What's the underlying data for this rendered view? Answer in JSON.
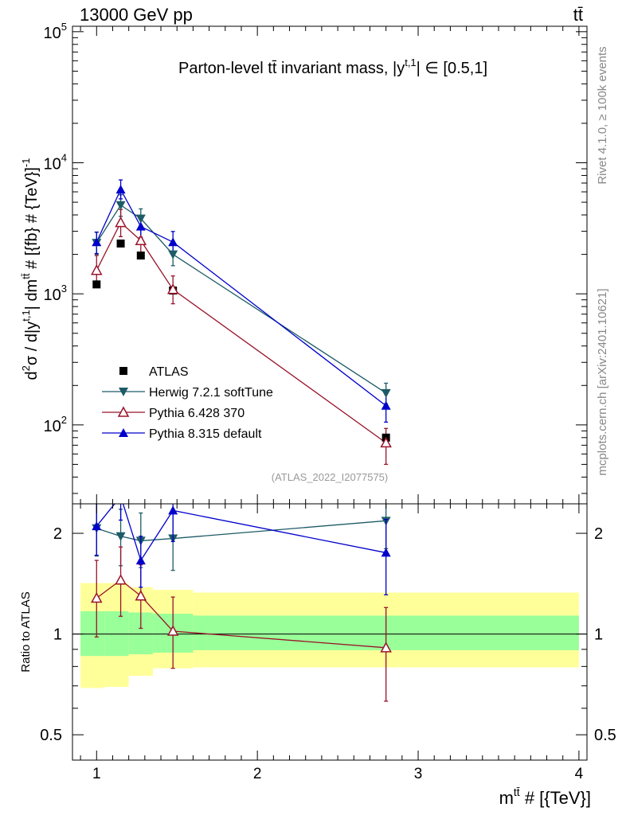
{
  "header": {
    "energy_label": "13000 GeV pp",
    "process_label": "tt̄"
  },
  "side_labels": {
    "rivet": "Rivet 4.1.0, ≥ 100k events",
    "source": "mcplots.cern.ch [arXiv:2401.10621]"
  },
  "watermark": "(ATLAS_2022_I2077575)",
  "chart_data": [
    {
      "type": "line",
      "title": "Parton-level tt̄ invariant mass, |y^{t,1}| ∈ [0.5,1]",
      "title_parts": {
        "pre": "Parton-level ",
        "ttbar": "tt̄",
        "mid": " invariant mass, |y",
        "sup": "t,1",
        "post": "| ∈ [0.5,1]"
      },
      "ylabel": "d²σ / d|y^{t,1}| dm^{tt̄} # [{fb} # {TeV}⁻¹]",
      "ylabel_parts": {
        "a": "d",
        "sup1": "2",
        "b": "σ / d|y",
        "sup2": "t,1",
        "c": "| dm",
        "sup3": "tt̄",
        "d": " # [{fb} # {TeV}]",
        "sup4": "-1"
      },
      "yscale": "log",
      "ylim": [
        25,
        110000
      ],
      "xlim": [
        0.85,
        4.05
      ],
      "y_ticks": [
        {
          "value": 100,
          "base": "10",
          "exp": "2"
        },
        {
          "value": 1000,
          "base": "10",
          "exp": "3"
        },
        {
          "value": 10000,
          "base": "10",
          "exp": "4"
        },
        {
          "value": 100000,
          "base": "10",
          "exp": "5"
        }
      ],
      "legend_position": "lower-left",
      "series": [
        {
          "name": "ATLAS",
          "marker": "square",
          "color": "#000000",
          "x": [
            1.0,
            1.15,
            1.275,
            1.475,
            2.8
          ],
          "y": [
            1180,
            2420,
            1960,
            1060,
            80
          ]
        },
        {
          "name": "Herwig 7.2.1 softTune",
          "marker": "triangle-down",
          "color": "#1d5b66",
          "x": [
            1.0,
            1.15,
            1.275,
            1.475,
            2.8
          ],
          "y": [
            2450,
            4750,
            3750,
            2000,
            175
          ],
          "yerr_low": [
            2000,
            3900,
            3100,
            1640,
            145
          ],
          "yerr_high": [
            2950,
            5700,
            4450,
            2380,
            208
          ]
        },
        {
          "name": "Pythia 6.428 370",
          "marker": "triangle-open",
          "color": "#99132a",
          "x": [
            1.0,
            1.15,
            1.275,
            1.475,
            2.8
          ],
          "y": [
            1510,
            3500,
            2550,
            1080,
            73
          ],
          "yerr_low": [
            1150,
            2730,
            2030,
            840,
            50
          ],
          "yerr_high": [
            1960,
            4400,
            3150,
            1370,
            94
          ]
        },
        {
          "name": "Pythia 8.315 default",
          "marker": "triangle-up",
          "color": "#0000cc",
          "x": [
            1.0,
            1.15,
            1.275,
            1.475,
            2.8
          ],
          "y": [
            2480,
            6250,
            3260,
            2480,
            140
          ],
          "yerr_low": [
            2030,
            5300,
            2700,
            2000,
            105
          ],
          "yerr_high": [
            2960,
            7400,
            3850,
            2990,
            176
          ]
        }
      ]
    },
    {
      "type": "line",
      "title": "",
      "ylabel": "Ratio to ATLAS",
      "xlabel_parts": {
        "a": "m",
        "sup": "tt̄",
        "b": " # [{TeV}]"
      },
      "yscale": "log",
      "ylim": [
        0.42,
        2.45
      ],
      "xlim": [
        0.85,
        4.05
      ],
      "y_ticks": [
        {
          "value": 0.5,
          "label": "0.5"
        },
        {
          "value": 1,
          "label": "1"
        },
        {
          "value": 2,
          "label": "2"
        }
      ],
      "x_ticks": [
        {
          "value": 1,
          "label": "1"
        },
        {
          "value": 2,
          "label": "2"
        },
        {
          "value": 3,
          "label": "3"
        },
        {
          "value": 4,
          "label": "4"
        }
      ],
      "bands": {
        "bin_edges": [
          0.9,
          1.05,
          1.2,
          1.35,
          1.6,
          4.0
        ],
        "inner_color": "#99ff99",
        "outer_color": "#ffff99",
        "inner_low": [
          0.86,
          0.86,
          0.87,
          0.88,
          0.895
        ],
        "inner_high": [
          1.17,
          1.17,
          1.16,
          1.15,
          1.135
        ],
        "outer_low": [
          0.69,
          0.695,
          0.75,
          0.79,
          0.795
        ],
        "outer_high": [
          1.42,
          1.42,
          1.38,
          1.355,
          1.33
        ]
      },
      "series": [
        {
          "name": "Herwig 7.2.1 softTune",
          "x": [
            1.0,
            1.15,
            1.275,
            1.475,
            2.8
          ],
          "y": [
            2.07,
            1.96,
            1.9,
            1.93,
            2.18
          ],
          "yerr_low": [
            1.71,
            1.6,
            1.58,
            1.55,
            1.8
          ],
          "yerr_high": [
            2.5,
            2.36,
            2.3,
            2.33,
            2.55
          ]
        },
        {
          "name": "Pythia 6.428 370",
          "x": [
            1.0,
            1.15,
            1.275,
            1.475,
            2.8
          ],
          "y": [
            1.28,
            1.45,
            1.3,
            1.02,
            0.91
          ],
          "yerr_low": [
            0.98,
            1.13,
            1.04,
            0.79,
            0.63
          ],
          "yerr_high": [
            1.66,
            1.82,
            1.61,
            1.29,
            1.2
          ]
        },
        {
          "name": "Pythia 8.315 default",
          "x": [
            1.0,
            1.15,
            1.275,
            1.475,
            2.8
          ],
          "y": [
            2.1,
            2.58,
            1.66,
            2.34,
            1.75
          ],
          "yerr_low": [
            1.72,
            2.19,
            1.38,
            1.89,
            1.31
          ],
          "yerr_high": [
            2.5,
            3.0,
            1.96,
            2.82,
            2.2
          ]
        }
      ]
    }
  ]
}
